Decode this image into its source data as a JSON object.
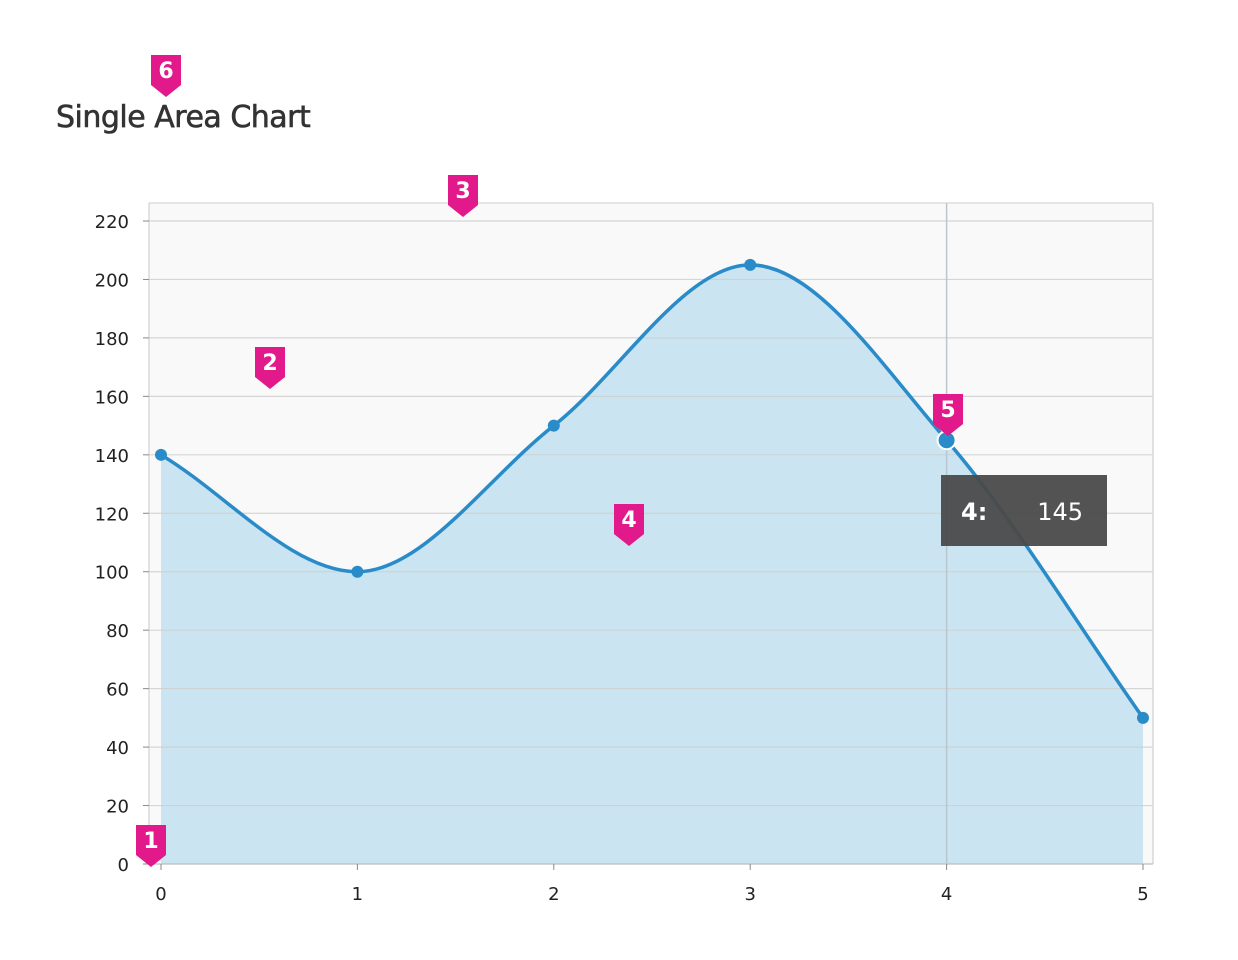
{
  "title": "Single Area Chart",
  "colors": {
    "line": "#2a8bc9",
    "area": "#c8e3f0",
    "plot_background": "#f9f9f9",
    "grid": "#cfcfcf",
    "tooltip_bg": "#4a4a4a",
    "marker": "#e2198a"
  },
  "chart_data": {
    "type": "area",
    "title": "Single Area Chart",
    "x": [
      0,
      1,
      2,
      3,
      4,
      5
    ],
    "values": [
      140,
      100,
      150,
      205,
      145,
      50
    ],
    "xlim": [
      0,
      5
    ],
    "ylim": [
      0,
      220
    ],
    "x_ticks": [
      "0",
      "1",
      "2",
      "3",
      "4",
      "5"
    ],
    "y_ticks": [
      "0",
      "20",
      "40",
      "60",
      "80",
      "100",
      "120",
      "140",
      "160",
      "180",
      "200",
      "220"
    ],
    "grid": "horizontal",
    "curve": "smooth",
    "tooltip": {
      "x_label": "4:",
      "value": "145",
      "highlighted_index": 4
    }
  },
  "annotations": [
    {
      "label": "1",
      "target": "origin"
    },
    {
      "label": "2",
      "target": "plot-background"
    },
    {
      "label": "3",
      "target": "plot-top"
    },
    {
      "label": "4",
      "target": "area-fill"
    },
    {
      "label": "5",
      "target": "hovered-point"
    },
    {
      "label": "6",
      "target": "title"
    }
  ]
}
